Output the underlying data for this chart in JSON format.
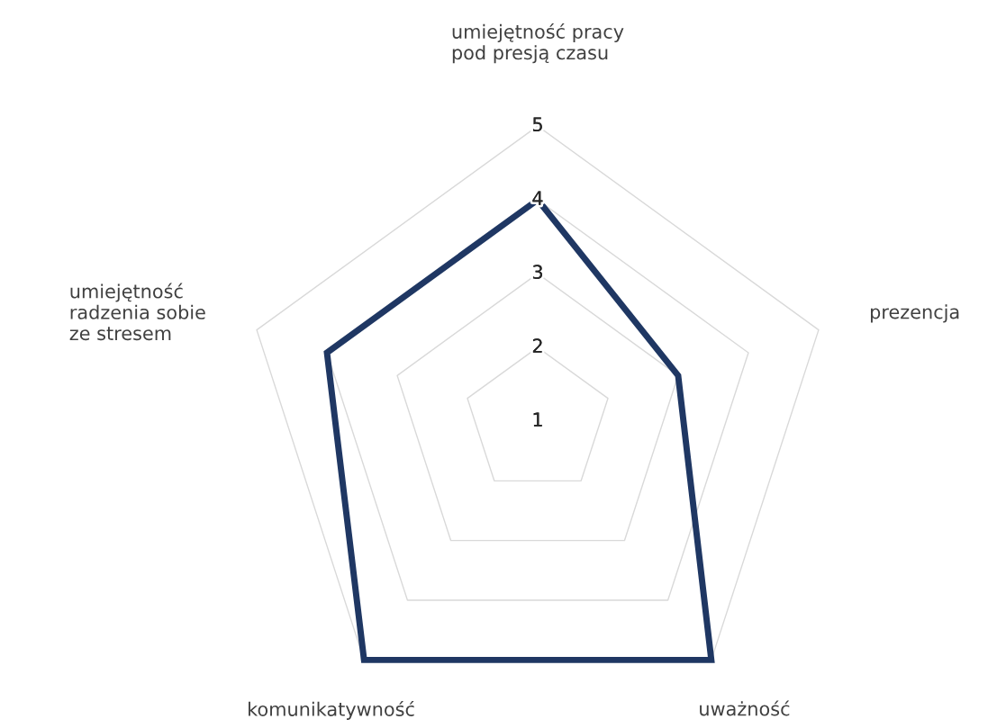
{
  "chart_data": {
    "type": "radar",
    "categories": [
      "umiejętność pracy\npod presją czasu",
      "prezencja",
      "uważność",
      "komunikatywność",
      "umiejętność\nradzenia sobie\nze stresem"
    ],
    "series": [
      {
        "color": "#1f3763",
        "values": [
          4,
          3,
          5,
          5,
          4
        ]
      }
    ],
    "ylim": [
      1,
      5
    ],
    "yticks": [
      1,
      2,
      3,
      4,
      5
    ],
    "grid": true,
    "legend": false,
    "marker": "none"
  }
}
